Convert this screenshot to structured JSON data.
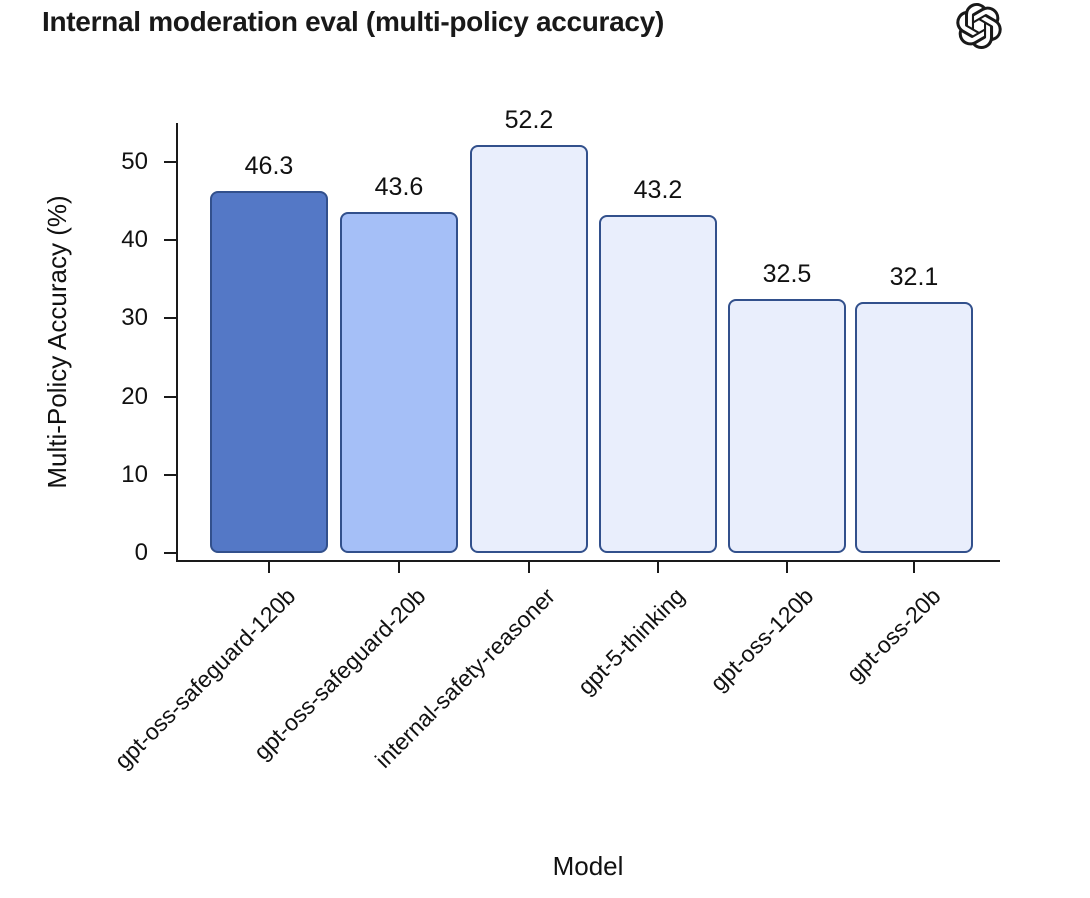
{
  "header": {
    "title": "Internal moderation eval (multi-policy accuracy)",
    "logo": "openai-logo"
  },
  "chart_data": {
    "type": "bar",
    "title": "Internal moderation eval (multi-policy accuracy)",
    "xlabel": "Model",
    "ylabel": "Multi-Policy Accuracy (%)",
    "categories": [
      "gpt-oss-safeguard-120b",
      "gpt-oss-safeguard-20b",
      "internal-safety-reasoner",
      "gpt-5-thinking",
      "gpt-oss-120b",
      "gpt-oss-20b"
    ],
    "values": [
      46.3,
      43.6,
      52.2,
      43.2,
      32.5,
      32.1
    ],
    "value_labels": [
      "46.3",
      "43.6",
      "52.2",
      "43.2",
      "32.5",
      "32.1"
    ],
    "yticks": [
      0,
      10,
      20,
      30,
      40,
      50
    ],
    "ylim": [
      0,
      55
    ],
    "grid": false,
    "legend": null,
    "bar_fill_colors": [
      "#5478c6",
      "#a5bff7",
      "#e9eefc",
      "#e9eefc",
      "#e9eefc",
      "#e9eefc"
    ],
    "bar_border_color": "#32508c",
    "spine_color": "#1a1a1a",
    "text_color": "#111111"
  }
}
